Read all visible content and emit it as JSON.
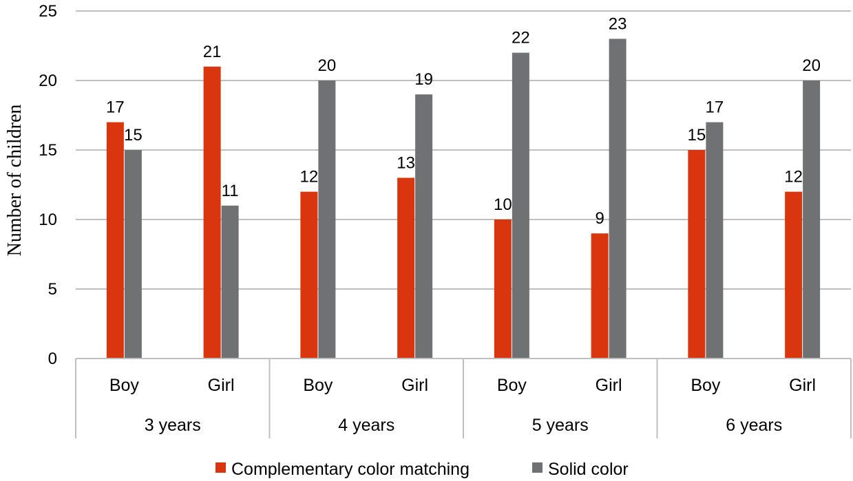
{
  "chart_data": {
    "type": "bar",
    "ylabel": "Number of children",
    "ylim": [
      0,
      25
    ],
    "yticks": [
      0,
      5,
      10,
      15,
      20,
      25
    ],
    "grid": true,
    "legend_position": "bottom",
    "groups": [
      {
        "label": "3 years",
        "categories": [
          "Boy",
          "Girl"
        ]
      },
      {
        "label": "4 years",
        "categories": [
          "Boy",
          "Girl"
        ]
      },
      {
        "label": "5 years",
        "categories": [
          "Boy",
          "Girl"
        ]
      },
      {
        "label": "6 years",
        "categories": [
          "Boy",
          "Girl"
        ]
      }
    ],
    "series": [
      {
        "name": "Complementary color matching",
        "color": "#d9350f",
        "values": [
          17,
          21,
          12,
          13,
          10,
          9,
          15,
          12
        ]
      },
      {
        "name": "Solid color",
        "color": "#6f7173",
        "values": [
          15,
          11,
          20,
          19,
          22,
          23,
          17,
          20
        ]
      }
    ]
  }
}
